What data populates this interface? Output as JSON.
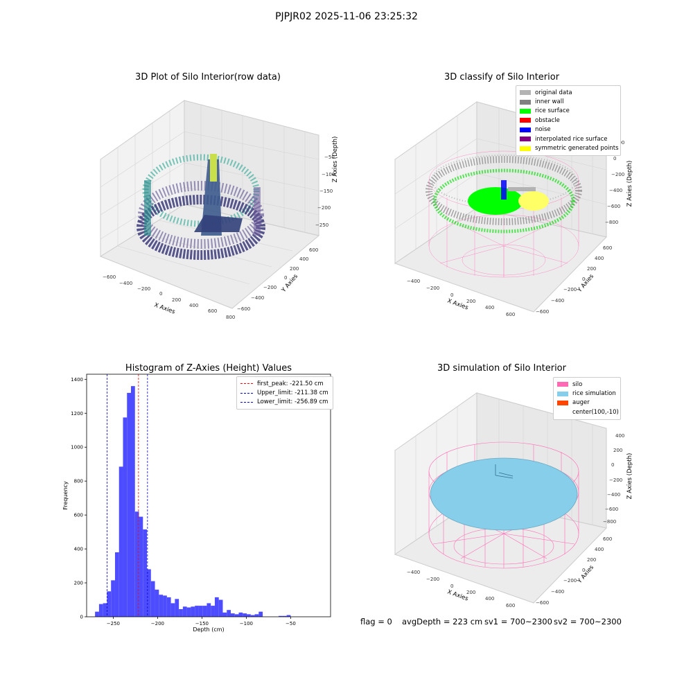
{
  "suptitle": "PJPJR02 2025-11-06 23:25:32",
  "status": {
    "flag": "flag = 0",
    "avg_depth": "avgDepth = 223 cm",
    "sv1": "sv1 = 700~2300",
    "sv2": "sv2 = 700~2300"
  },
  "colors": {
    "bar": "#4d4dff",
    "peak_line": "#ff0000",
    "limit_line": "#0000cc",
    "silo": "#ff69b4",
    "rice_sim": "#87ceeb",
    "auger": "#ff4500",
    "viridis_dark": "#3b2a6b",
    "viridis_mid": "#2a8c8c",
    "viridis_light": "#c9e04a"
  },
  "plot1": {
    "title": "3D Plot of Silo Interior(row data)",
    "x_label": "X Axies",
    "y_label": "Y Axies",
    "z_label": "Z Axies (Depth)",
    "x_ticks": [
      "−600",
      "−400",
      "−200",
      "0",
      "200",
      "400",
      "600",
      "800"
    ],
    "y_ticks": [
      "−600",
      "−400",
      "−200",
      "0",
      "200",
      "400",
      "600"
    ],
    "z_ticks": [
      "−50",
      "−100",
      "−150",
      "−200",
      "−250"
    ]
  },
  "plot2": {
    "title": "3D classify of Silo Interior",
    "x_label": "X Axies",
    "y_label": "Y Axies",
    "z_label": "Z Axies (Depth)",
    "x_ticks": [
      "−400",
      "−200",
      "0",
      "200",
      "400",
      "600"
    ],
    "y_ticks": [
      "−600",
      "−400",
      "−200",
      "0",
      "200",
      "400",
      "600"
    ],
    "z_ticks": [
      "200",
      "0",
      "−200",
      "−400",
      "−600",
      "−800"
    ],
    "z_tick_top": "200",
    "legend": [
      {
        "label": "original data",
        "color": "#b3b3b3"
      },
      {
        "label": "inner wall",
        "color": "#808080"
      },
      {
        "label": "rice surface",
        "color": "#00ff00"
      },
      {
        "label": "obstacle",
        "color": "#ff0000"
      },
      {
        "label": "noise",
        "color": "#0000ff"
      },
      {
        "label": "interpolated rice surface",
        "color": "#800080"
      },
      {
        "label": "symmetric generated points",
        "color": "#ffff00"
      }
    ]
  },
  "plot3": {
    "title": "Histogram of Z-Axies (Height) Values",
    "legend": [
      {
        "label": "first_peak: -221.50 cm",
        "color": "#ff0000"
      },
      {
        "label": "Upper_limit: -211.38 cm",
        "color": "#0000cc"
      },
      {
        "label": "Lower_limit: -256.89 cm",
        "color": "#0000cc"
      }
    ]
  },
  "plot4": {
    "title": "3D simulation of Silo Interior",
    "x_label": "X Axies",
    "y_label": "Y Axies",
    "z_label": "Z Axies (Depth)",
    "x_ticks": [
      "−400",
      "−200",
      "0",
      "200",
      "400",
      "600"
    ],
    "y_ticks": [
      "−600",
      "−400",
      "−200",
      "0",
      "200",
      "400",
      "600"
    ],
    "z_ticks": [
      "400",
      "200",
      "0",
      "−200",
      "−400",
      "−600",
      "−800"
    ],
    "legend": [
      {
        "label": "silo",
        "color": "#ff69b4"
      },
      {
        "label": "rice simulation",
        "color": "#87ceeb"
      },
      {
        "label": "auger",
        "color": "#ff4500"
      },
      {
        "label": "center(100,-10)",
        "color": ""
      }
    ]
  },
  "chart_data": {
    "type": "bar",
    "title": "Histogram of Z-Axies (Height) Values",
    "xlabel": "Depth (cm)",
    "ylabel": "Frequency",
    "xlim": [
      -280,
      -5
    ],
    "ylim": [
      0,
      1430
    ],
    "x_ticks": [
      -250,
      -200,
      -150,
      -100,
      -50
    ],
    "y_ticks": [
      0,
      200,
      400,
      600,
      800,
      1000,
      1200,
      1400
    ],
    "bin_start": -275,
    "bin_width": 4.5,
    "values": [
      0,
      30,
      75,
      80,
      150,
      215,
      380,
      885,
      1175,
      1320,
      1360,
      620,
      590,
      515,
      280,
      210,
      160,
      130,
      125,
      115,
      80,
      105,
      45,
      60,
      55,
      60,
      65,
      65,
      65,
      80,
      65,
      115,
      100,
      25,
      40,
      20,
      15,
      25,
      20,
      15,
      10,
      15,
      30,
      0,
      0,
      0,
      0,
      5,
      5,
      10
    ],
    "vlines": [
      {
        "name": "first_peak",
        "x": -221.5,
        "color": "#ff0000"
      },
      {
        "name": "Upper_limit",
        "x": -211.38,
        "color": "#0000cc"
      },
      {
        "name": "Lower_limit",
        "x": -256.89,
        "color": "#0000cc"
      }
    ],
    "grid": false,
    "legend_position": "top-right"
  }
}
